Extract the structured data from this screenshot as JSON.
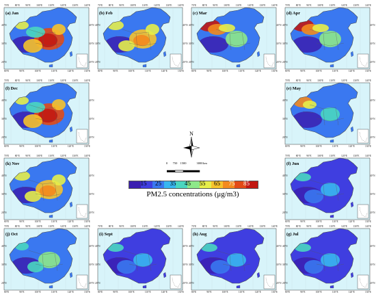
{
  "colors": {
    "scale": [
      "#3b1fb0",
      "#3f3ee0",
      "#3a78f0",
      "#38b6f0",
      "#4ad6c0",
      "#8ee88a",
      "#e6ee4a",
      "#f6c22c",
      "#f38a1e",
      "#e24a16",
      "#c21812"
    ],
    "sea": "#d8f4fa",
    "inset_bg": "#ffffff",
    "boundary": "#4a4a4a"
  },
  "panels": [
    {
      "id": "jan",
      "label": "(a) Jan",
      "style": "hot",
      "slot": [
        0,
        0
      ]
    },
    {
      "id": "feb",
      "label": "(b) Feb",
      "style": "warm",
      "slot": [
        1,
        0
      ]
    },
    {
      "id": "mar",
      "label": "(c) Mar",
      "style": "west",
      "slot": [
        2,
        0
      ]
    },
    {
      "id": "apr",
      "label": "(d) Apr",
      "style": "west",
      "slot": [
        3,
        0
      ]
    },
    {
      "id": "dec",
      "label": "(l) Dec",
      "style": "hot",
      "slot": [
        0,
        1
      ]
    },
    {
      "id": "may",
      "label": "(e) May",
      "style": "westmild",
      "slot": [
        3,
        1
      ]
    },
    {
      "id": "nov",
      "label": "(k) Nov",
      "style": "warm",
      "slot": [
        0,
        2
      ]
    },
    {
      "id": "jun",
      "label": "(f) Jun",
      "style": "clean",
      "slot": [
        3,
        2
      ]
    },
    {
      "id": "oct",
      "label": "(j) Oct",
      "style": "mild",
      "slot": [
        0,
        3
      ]
    },
    {
      "id": "sep",
      "label": "(i) Sept",
      "style": "clean",
      "slot": [
        1,
        3
      ]
    },
    {
      "id": "aug",
      "label": "(h) Aug",
      "style": "clean",
      "slot": [
        2,
        3
      ]
    },
    {
      "id": "jul",
      "label": "(g) Jul",
      "style": "clean",
      "slot": [
        3,
        3
      ]
    }
  ],
  "axes": {
    "lon_top": [
      "70°E",
      "80°E",
      "90°E",
      "100°E",
      "110°E",
      "120°E",
      "130°E",
      "140°E"
    ],
    "lon_bottom": [
      "80°E",
      "90°E",
      "100°E",
      "110°E",
      "120°E",
      "130°E"
    ],
    "lat_left": [
      "40°N",
      "30°N",
      "20°N"
    ],
    "lat_right": [
      "40°N",
      "30°N",
      "20°N"
    ]
  },
  "legend": {
    "north": "N",
    "scale_ticks": [
      "0",
      "750",
      "1500",
      "3000"
    ],
    "scale_unit": "km",
    "colorbar_ticks": [
      "15",
      "25",
      "35",
      "45",
      "55",
      "65",
      "75",
      "85"
    ],
    "title": "PM2.5 concentrations (μg/m3)"
  }
}
